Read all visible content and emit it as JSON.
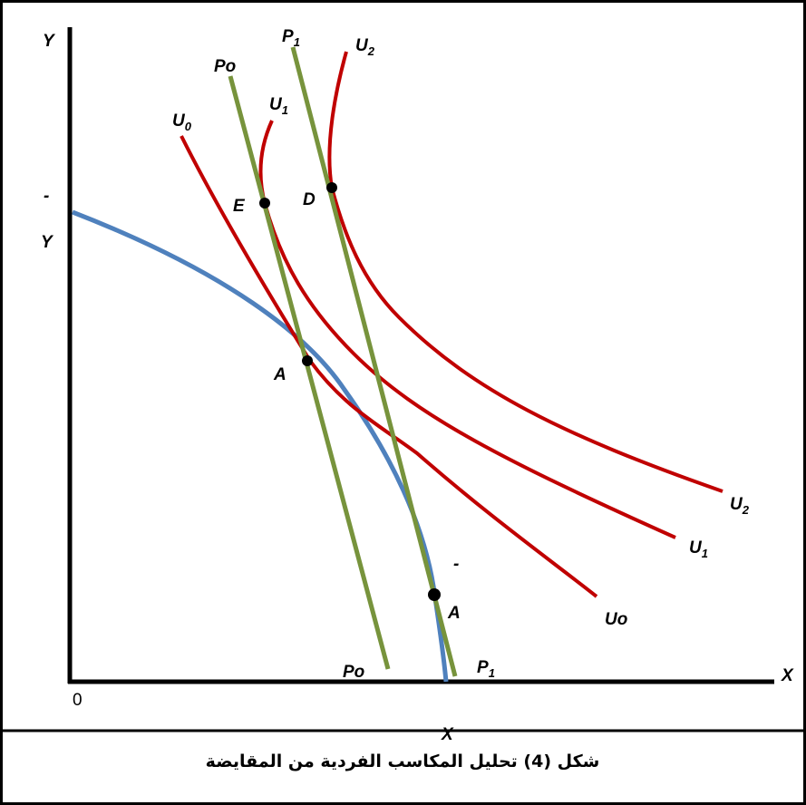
{
  "axes": {
    "y_label": "Y",
    "x_label": "X",
    "origin": "0",
    "y_bar_mark": "-",
    "y_bar_letter": "Y",
    "x_bar_letter": "X"
  },
  "curves": {
    "indifference": [
      {
        "name": "U",
        "sub": "0",
        "end_name": "Uo",
        "end_sub": ""
      },
      {
        "name": "U",
        "sub": "1",
        "end_name": "U",
        "end_sub": "1"
      },
      {
        "name": "U",
        "sub": "2",
        "end_name": "U",
        "end_sub": "2"
      }
    ],
    "price_lines": [
      {
        "name": "Po",
        "sub": "",
        "end_name": "Po",
        "end_sub": ""
      },
      {
        "name": "P",
        "sub": "1",
        "end_name": "P",
        "end_sub": "1"
      }
    ]
  },
  "points": {
    "E": "E",
    "D": "D",
    "A": "A",
    "A_bar": "A",
    "A_bar_mark": "-"
  },
  "colors": {
    "frontier": "#4f81bd",
    "indifference": "#c00000",
    "price_line": "#77933c",
    "axis": "#000000"
  },
  "caption": "شكل (4) تحليل المكاسب الفردية من المقايضة"
}
